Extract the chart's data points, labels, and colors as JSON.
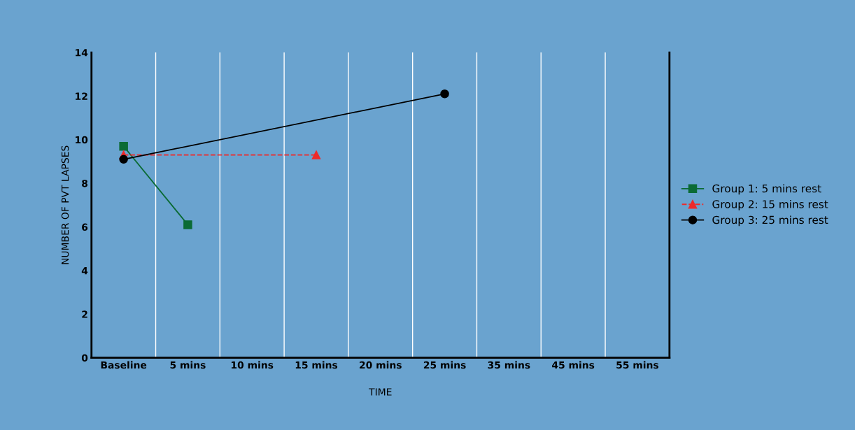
{
  "chart_data": {
    "type": "line",
    "xlabel": "TIME",
    "ylabel": "NUMBER OF PVT LAPSES",
    "categories": [
      "Baseline",
      "5 mins",
      "10 mins",
      "15 mins",
      "20 mins",
      "25 mins",
      "35 mins",
      "45 mins",
      "55 mins"
    ],
    "series": [
      {
        "name": "Group 1: 5 mins rest",
        "color": "#0b6b35",
        "marker": "square",
        "line_style": "solid",
        "values": [
          9.7,
          6.1,
          null,
          null,
          null,
          null,
          null,
          null,
          null
        ]
      },
      {
        "name": "Group 2: 15 mins rest",
        "color": "#ee2a2a",
        "marker": "triangle",
        "line_style": "dashed",
        "values": [
          9.3,
          null,
          null,
          9.3,
          null,
          null,
          null,
          null,
          null
        ]
      },
      {
        "name": "Group 3: 25 mins rest",
        "color": "#000000",
        "marker": "circle",
        "line_style": "solid",
        "values": [
          9.1,
          null,
          null,
          null,
          null,
          12.1,
          null,
          null,
          null
        ]
      }
    ],
    "ylim": [
      0,
      14
    ],
    "yticks": [
      0,
      2,
      4,
      6,
      8,
      10,
      12,
      14
    ],
    "grid": "x",
    "legend": "right"
  }
}
